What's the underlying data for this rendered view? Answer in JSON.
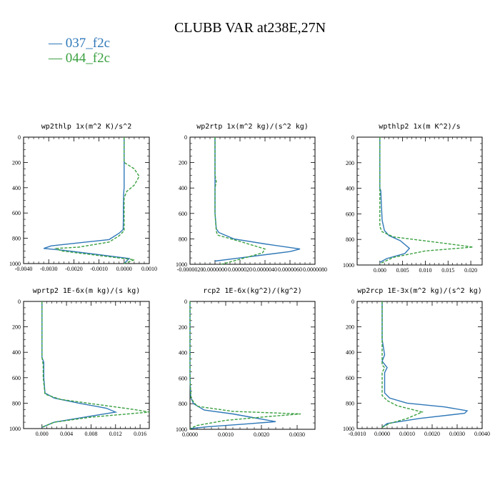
{
  "figure": {
    "title": "CLUBB VAR at238E,27N",
    "legend": [
      {
        "label": "— 037_f2c",
        "color": "#2f78b8"
      },
      {
        "label": "— 044_f2c",
        "color": "#3aa040"
      }
    ]
  },
  "chart_data": [
    {
      "type": "line",
      "title": "wp2thlp  1x(m^2 K)/s^2",
      "xlim": [
        -0.004,
        0.001
      ],
      "xticks": [
        -0.004,
        -0.003,
        -0.002,
        -0.001,
        0.0,
        0.001
      ],
      "xticklabels": [
        "-0.0040",
        "-0.0030",
        "-0.0020",
        "-0.0010",
        "0.0000",
        "0.0010"
      ],
      "ylim": [
        1000,
        0
      ],
      "yticks": [
        0,
        200,
        400,
        600,
        800,
        1000
      ],
      "series": [
        {
          "name": "037_f2c",
          "color": "#2f78b8",
          "dashed": false,
          "x": [
            0.0,
            0.0,
            0.0,
            0.0,
            0.0,
            -2e-05,
            -3e-05,
            -3e-05,
            -4e-05,
            -0.0002,
            -0.0006,
            -0.0029,
            -0.0032,
            -0.0024,
            0.0002,
            0.0
          ],
          "y": [
            0,
            200,
            300,
            360,
            400,
            450,
            550,
            650,
            730,
            760,
            810,
            860,
            880,
            895,
            960,
            1000
          ]
        },
        {
          "name": "044_f2c",
          "color": "#3aa040",
          "dashed": true,
          "x": [
            0.0,
            0.0,
            0.0004,
            0.0006,
            0.0004,
            0.0001,
            0.0,
            0.0,
            0.0,
            -0.0002,
            -0.0006,
            -0.0018,
            -0.0027,
            -0.0025,
            0.0004,
            0.0
          ],
          "y": [
            0,
            200,
            250,
            310,
            380,
            430,
            480,
            600,
            740,
            780,
            830,
            870,
            880,
            900,
            970,
            1000
          ]
        }
      ]
    },
    {
      "type": "line",
      "title": "wp2rtp  1x(m^2 kg)/(s^2 kg)",
      "xlim": [
        -2e-06,
        8e-06
      ],
      "xticks": [
        -2e-06,
        0.0,
        2e-06,
        4e-06,
        6e-06,
        8e-06
      ],
      "xticklabels": [
        "-0.0000020",
        "0.0000000",
        "0.0000020",
        "0.0000040",
        "0.0000060",
        "0.0000080"
      ],
      "ylim": [
        1000,
        0
      ],
      "yticks": [
        0,
        200,
        400,
        600,
        800,
        1000
      ],
      "series": [
        {
          "name": "037_f2c",
          "color": "#2f78b8",
          "dashed": false,
          "x": [
            0.0,
            0.0,
            0.0,
            0.0,
            1e-07,
            3e-07,
            1.5e-06,
            4e-06,
            6.8e-06,
            6e-06,
            2e-06,
            0.0
          ],
          "y": [
            0,
            300,
            400,
            600,
            720,
            750,
            800,
            840,
            880,
            900,
            950,
            975
          ]
        },
        {
          "name": "044_f2c",
          "color": "#3aa040",
          "dashed": true,
          "x": [
            0.0,
            0.0,
            1e-07,
            0.0,
            0.0,
            1e-07,
            2e-07,
            2e-06,
            4e-06,
            3.8e-06,
            2e-06,
            5e-07
          ],
          "y": [
            0,
            300,
            350,
            400,
            600,
            740,
            770,
            820,
            880,
            910,
            960,
            1000
          ]
        }
      ]
    },
    {
      "type": "line",
      "title": "wpthlp2  1x(m K^2)/s",
      "xlim": [
        -0.005,
        0.0225
      ],
      "xticks": [
        0.0,
        0.005,
        0.01,
        0.015,
        0.02
      ],
      "xticklabels": [
        "0.000",
        "0.005",
        "0.010",
        "0.015",
        "0.020"
      ],
      "ylim": [
        1000,
        0
      ],
      "yticks": [
        0,
        200,
        400,
        600,
        800,
        1000
      ],
      "series": [
        {
          "name": "037_f2c",
          "color": "#2f78b8",
          "dashed": false,
          "x": [
            0.0,
            0.0,
            0.0,
            0.0002,
            0.0003,
            0.0005,
            0.001,
            0.002,
            0.0045,
            0.0065,
            0.0055,
            0.0015,
            0.0
          ],
          "y": [
            0,
            300,
            400,
            420,
            500,
            650,
            730,
            770,
            810,
            870,
            910,
            950,
            980
          ]
        },
        {
          "name": "044_f2c",
          "color": "#3aa040",
          "dashed": true,
          "x": [
            0.0,
            0.0,
            0.0,
            0.0,
            0.0,
            0.0005,
            0.003,
            0.012,
            0.0205,
            0.01,
            0.003,
            0.0
          ],
          "y": [
            0,
            300,
            500,
            600,
            700,
            740,
            780,
            820,
            860,
            890,
            940,
            990
          ]
        }
      ]
    },
    {
      "type": "line",
      "title": "wprtp2  1E-6x(m kg)/(s kg)",
      "xlim": [
        -0.003,
        0.0175
      ],
      "xticks": [
        0.0,
        0.004,
        0.008,
        0.012,
        0.016
      ],
      "xticklabels": [
        "0.000",
        "0.004",
        "0.008",
        "0.012",
        "0.016"
      ],
      "ylim": [
        1000,
        0
      ],
      "yticks": [
        0,
        200,
        400,
        600,
        800,
        1000
      ],
      "series": [
        {
          "name": "037_f2c",
          "color": "#2f78b8",
          "dashed": false,
          "x": [
            0.0,
            0.0,
            0.0,
            0.0003,
            0.0003,
            0.0005,
            0.002,
            0.006,
            0.0105,
            0.012,
            0.0095,
            0.002,
            0.0
          ],
          "y": [
            0,
            300,
            440,
            480,
            600,
            720,
            760,
            800,
            840,
            870,
            890,
            950,
            990
          ]
        },
        {
          "name": "044_f2c",
          "color": "#3aa040",
          "dashed": true,
          "x": [
            0.0,
            0.0,
            0.0,
            0.0002,
            0.0002,
            0.0005,
            0.003,
            0.009,
            0.015,
            0.0175,
            0.008,
            0.002,
            0.0
          ],
          "y": [
            0,
            300,
            440,
            500,
            600,
            730,
            770,
            810,
            850,
            870,
            910,
            950,
            990
          ]
        }
      ]
    },
    {
      "type": "line",
      "title": "rcp2  1E-6x(kg^2)/(kg^2)",
      "xlim": [
        0.0,
        0.0035
      ],
      "xticks": [
        0.0,
        0.001,
        0.002,
        0.003
      ],
      "xticklabels": [
        "0.0000",
        "0.0010",
        "0.0020",
        "0.0030"
      ],
      "ylim": [
        1000,
        0
      ],
      "yticks": [
        0,
        200,
        400,
        600,
        800,
        1000
      ],
      "series": [
        {
          "name": "037_f2c",
          "color": "#2f78b8",
          "dashed": false,
          "x": [
            0.0,
            0.0,
            2e-05,
            0.0001,
            0.0004,
            0.0012,
            0.0017,
            0.0024,
            0.0015,
            0.0005,
            0.0
          ],
          "y": [
            0,
            600,
            750,
            800,
            850,
            880,
            905,
            940,
            960,
            980,
            995
          ]
        },
        {
          "name": "044_f2c",
          "color": "#3aa040",
          "dashed": true,
          "x": [
            0.0,
            0.0,
            3e-05,
            0.0002,
            0.0012,
            0.0031,
            0.0022,
            0.001,
            0.0002,
            0.0
          ],
          "y": [
            0,
            600,
            760,
            820,
            860,
            880,
            900,
            930,
            970,
            995
          ]
        }
      ]
    },
    {
      "type": "line",
      "title": "wp2rcp  1E-3x(m^2 kg)/(s^2 kg)",
      "xlim": [
        -0.001,
        0.004
      ],
      "xticks": [
        -0.001,
        0.0,
        0.001,
        0.002,
        0.003,
        0.004
      ],
      "xticklabels": [
        "-0.0010",
        "0.0000",
        "0.0010",
        "0.0020",
        "0.0030",
        "0.0040"
      ],
      "ylim": [
        1000,
        0
      ],
      "yticks": [
        0,
        200,
        400,
        600,
        800,
        1000
      ],
      "series": [
        {
          "name": "037_f2c",
          "color": "#2f78b8",
          "dashed": false,
          "x": [
            0.0,
            0.0,
            0.0001,
            0.0,
            0.0002,
            0.0001,
            0.0001,
            0.0003,
            0.001,
            0.0025,
            0.0034,
            0.0033,
            0.0015,
            0.0002,
            0.0
          ],
          "y": [
            0,
            300,
            420,
            470,
            520,
            560,
            720,
            760,
            800,
            830,
            860,
            880,
            920,
            960,
            990
          ]
        },
        {
          "name": "044_f2c",
          "color": "#3aa040",
          "dashed": true,
          "x": [
            0.0,
            0.0,
            0.0,
            0.0001,
            0.0,
            0.0,
            0.0002,
            0.0006,
            0.0012,
            0.0016,
            0.001,
            0.0003,
            0.0
          ],
          "y": [
            0,
            300,
            500,
            520,
            560,
            740,
            780,
            820,
            850,
            870,
            920,
            960,
            990
          ]
        }
      ]
    }
  ]
}
